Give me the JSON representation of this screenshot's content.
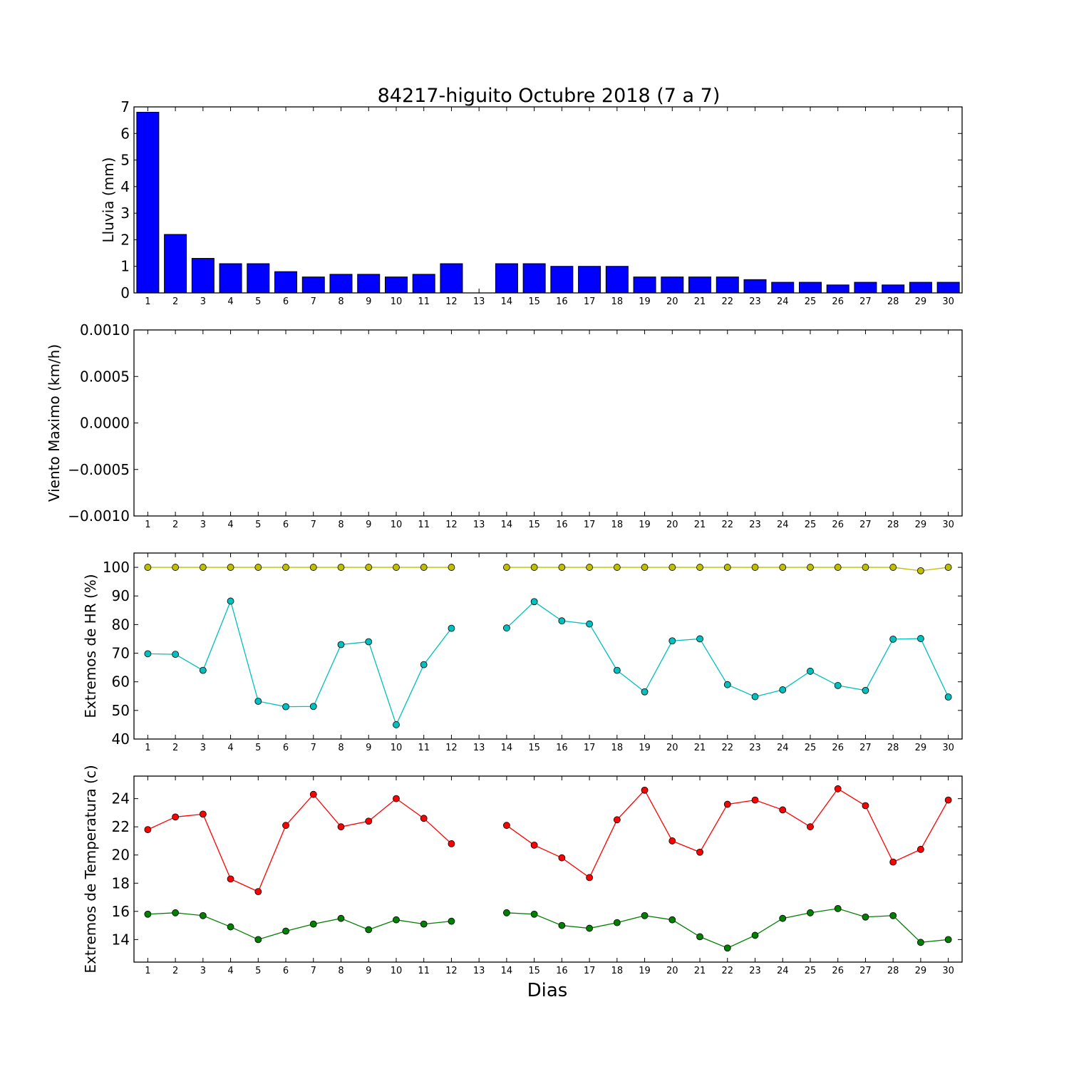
{
  "chart_data": [
    {
      "type": "bar",
      "title": "84217-higuito Octubre 2018  (7 a 7)",
      "ylabel": "Lluvia (mm)",
      "xlabel": "",
      "categories": [
        1,
        2,
        3,
        4,
        5,
        6,
        7,
        8,
        9,
        10,
        11,
        12,
        13,
        14,
        15,
        16,
        17,
        18,
        19,
        20,
        21,
        22,
        23,
        24,
        25,
        26,
        27,
        28,
        29,
        30
      ],
      "values": [
        6.8,
        2.2,
        1.3,
        1.1,
        1.1,
        0.8,
        0.6,
        0.7,
        0.7,
        0.6,
        0.7,
        1.1,
        null,
        1.1,
        1.1,
        1.0,
        1.0,
        1.0,
        0.6,
        0.6,
        0.6,
        0.6,
        0.5,
        0.4,
        0.4,
        0.3,
        0.4,
        0.3,
        0.4,
        0.4
      ],
      "ylim": [
        0,
        7
      ],
      "yticks": [
        "0",
        "1",
        "2",
        "3",
        "4",
        "5",
        "6",
        "7"
      ],
      "color": "#0000ff"
    },
    {
      "type": "line",
      "ylabel": "Viento Maximo (km/h)",
      "xlabel": "",
      "x": [
        1,
        2,
        3,
        4,
        5,
        6,
        7,
        8,
        9,
        10,
        11,
        12,
        13,
        14,
        15,
        16,
        17,
        18,
        19,
        20,
        21,
        22,
        23,
        24,
        25,
        26,
        27,
        28,
        29,
        30
      ],
      "series": [],
      "ylim": [
        -0.001,
        0.001
      ],
      "yticks": [
        "−0.0010",
        "−0.0005",
        "0.0000",
        "0.0005",
        "0.0010"
      ]
    },
    {
      "type": "line",
      "ylabel": "Extremos de HR (%)",
      "xlabel": "",
      "x": [
        1,
        2,
        3,
        4,
        5,
        6,
        7,
        8,
        9,
        10,
        11,
        12,
        13,
        14,
        15,
        16,
        17,
        18,
        19,
        20,
        21,
        22,
        23,
        24,
        25,
        26,
        27,
        28,
        29,
        30
      ],
      "series": [
        {
          "color": "#bfbf00",
          "values": [
            100,
            100,
            100,
            100,
            100,
            100,
            100,
            100,
            100,
            100,
            100,
            100,
            null,
            100,
            100,
            100,
            100,
            100,
            100,
            100,
            100,
            100,
            100,
            100,
            100,
            100,
            100,
            100,
            98.8,
            100
          ]
        },
        {
          "color": "#00bfbf",
          "values": [
            69.8,
            69.6,
            64,
            88.2,
            53.2,
            51.3,
            51.4,
            73,
            74,
            45,
            66,
            78.7,
            null,
            78.8,
            88,
            81.3,
            80.2,
            64,
            56.5,
            74.3,
            75,
            59,
            54.8,
            57.2,
            63.7,
            58.7,
            57,
            74.9,
            75.1,
            54.7
          ]
        }
      ],
      "ylim": [
        40,
        105
      ],
      "yticks": [
        "40",
        "50",
        "60",
        "70",
        "80",
        "90",
        "100"
      ]
    },
    {
      "type": "line",
      "ylabel": "Extremos de Temperatura (c)",
      "xlabel": "Dias",
      "x": [
        1,
        2,
        3,
        4,
        5,
        6,
        7,
        8,
        9,
        10,
        11,
        12,
        13,
        14,
        15,
        16,
        17,
        18,
        19,
        20,
        21,
        22,
        23,
        24,
        25,
        26,
        27,
        28,
        29,
        30
      ],
      "series": [
        {
          "color": "#ff0000",
          "values": [
            21.8,
            22.7,
            22.9,
            18.3,
            17.4,
            22.1,
            24.3,
            22,
            22.4,
            24,
            22.6,
            20.8,
            null,
            22.1,
            20.7,
            19.8,
            18.4,
            22.5,
            24.6,
            21,
            20.2,
            23.6,
            23.9,
            23.2,
            22,
            24.7,
            23.5,
            19.5,
            20.4,
            23.9
          ]
        },
        {
          "color": "#008000",
          "values": [
            15.8,
            15.9,
            15.7,
            14.9,
            14,
            14.6,
            15.1,
            15.5,
            14.7,
            15.4,
            15.1,
            15.3,
            null,
            15.9,
            15.8,
            15,
            14.8,
            15.2,
            15.7,
            15.4,
            14.2,
            13.4,
            14.3,
            15.5,
            15.9,
            16.2,
            15.6,
            15.7,
            13.8,
            14
          ]
        }
      ],
      "ylim": [
        12.4,
        25.6
      ],
      "yticks": [
        "14",
        "16",
        "18",
        "20",
        "22",
        "24"
      ]
    }
  ]
}
